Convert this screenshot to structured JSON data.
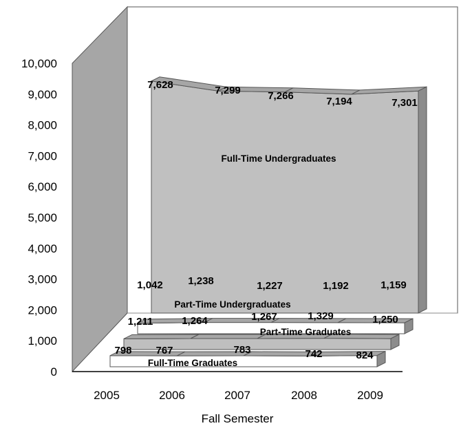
{
  "chart_data": {
    "type": "area",
    "categories": [
      "2005",
      "2006",
      "2007",
      "2008",
      "2009"
    ],
    "xlabel": "Fall Semester",
    "ylabel": "",
    "ylim": [
      0,
      10000
    ],
    "yticks": [
      "0",
      "1,000",
      "2,000",
      "3,000",
      "4,000",
      "5,000",
      "6,000",
      "7,000",
      "8,000",
      "9,000",
      "10,000"
    ],
    "series": [
      {
        "name": "Full-Time Undergraduates",
        "values": [
          7628,
          7299,
          7266,
          7194,
          7301
        ],
        "labels": [
          "7,628",
          "7,299",
          "7,266",
          "7,194",
          "7,301"
        ],
        "color": "#c0c0c0"
      },
      {
        "name": "Part-Time Undergraduates",
        "values": [
          1042,
          1238,
          1227,
          1192,
          1159
        ],
        "labels": [
          "1,042",
          "1,238",
          "1,227",
          "1,192",
          "1,159"
        ],
        "color": "#ffffff"
      },
      {
        "name": "Part-Time Graduates",
        "values": [
          1211,
          1264,
          1267,
          1329,
          1250
        ],
        "labels": [
          "1,211",
          "1,264",
          "1,267",
          "1,329",
          "1,250"
        ],
        "color": "#bfbfbf"
      },
      {
        "name": "Full-Time Graduates",
        "values": [
          798,
          767,
          783,
          742,
          824
        ],
        "labels": [
          "798",
          "767",
          "783",
          "742",
          "824"
        ],
        "color": "#ffffff"
      }
    ],
    "grid": false,
    "legend": "none",
    "colors": {
      "back_wall": "#ffffff",
      "side_wall": "#a6a6a6",
      "outline": "#555555"
    }
  }
}
